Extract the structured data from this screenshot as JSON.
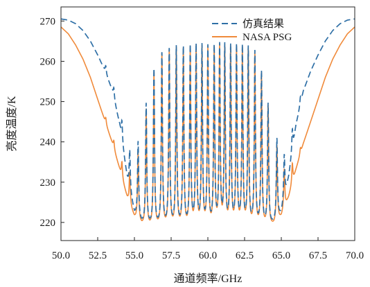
{
  "chart_data": {
    "type": "line",
    "xlabel": "通道频率/GHz",
    "ylabel": "亮度温度/K",
    "xlim": [
      50.0,
      70.0
    ],
    "ylim": [
      215.5,
      273.5
    ],
    "x_ticks": [
      50.0,
      52.5,
      55.0,
      57.5,
      60.0,
      62.5,
      65.0,
      67.5,
      70.0
    ],
    "x_tick_labels": [
      "50.0",
      "52.5",
      "55.0",
      "57.5",
      "60.0",
      "62.5",
      "65.0",
      "67.5",
      "70.0"
    ],
    "y_ticks": [
      220,
      230,
      240,
      250,
      260,
      270
    ],
    "y_tick_labels": [
      "220",
      "230",
      "240",
      "250",
      "260",
      "270"
    ],
    "grid": false,
    "legend_position": "top-right",
    "series": [
      {
        "name": "仿真结果",
        "color": "#2e6fa6",
        "style": "dashed",
        "envelope": [
          [
            50.0,
            270.5
          ],
          [
            50.5,
            270.2
          ],
          [
            51.0,
            269.3
          ],
          [
            51.5,
            267.6
          ],
          [
            52.0,
            265.0
          ],
          [
            52.5,
            261.5
          ],
          [
            53.0,
            257.5
          ],
          [
            53.5,
            252.5
          ],
          [
            54.0,
            244.0
          ],
          [
            54.5,
            231.0
          ],
          [
            55.0,
            222.0
          ],
          [
            55.5,
            219.5
          ],
          [
            56.0,
            218.8
          ],
          [
            58.0,
            218.3
          ],
          [
            60.0,
            218.1
          ],
          [
            62.0,
            218.3
          ],
          [
            64.0,
            218.8
          ],
          [
            64.5,
            219.5
          ],
          [
            65.0,
            222.0
          ],
          [
            65.5,
            231.0
          ],
          [
            66.0,
            244.0
          ],
          [
            66.5,
            252.5
          ],
          [
            67.0,
            257.5
          ],
          [
            67.5,
            261.5
          ],
          [
            68.0,
            265.0
          ],
          [
            68.5,
            267.6
          ],
          [
            69.0,
            269.3
          ],
          [
            69.5,
            270.2
          ],
          [
            70.0,
            270.5
          ]
        ],
        "lines": [
          [
            53.05,
            1.8
          ],
          [
            53.6,
            2.5
          ],
          [
            54.15,
            5.0
          ],
          [
            54.68,
            10.0
          ],
          [
            55.25,
            19.0
          ],
          [
            55.8,
            30.0
          ],
          [
            56.33,
            39.0
          ],
          [
            56.87,
            43.0
          ],
          [
            57.37,
            44.0
          ],
          [
            57.85,
            44.5
          ],
          [
            58.33,
            44.6
          ],
          [
            58.8,
            44.6
          ],
          [
            59.2,
            44.7
          ],
          [
            59.6,
            44.7
          ],
          [
            60.0,
            44.5
          ],
          [
            60.43,
            44.6
          ],
          [
            60.8,
            44.6
          ],
          [
            61.15,
            44.6
          ],
          [
            61.55,
            44.5
          ],
          [
            61.95,
            44.5
          ],
          [
            62.35,
            44.3
          ],
          [
            62.75,
            44.0
          ],
          [
            63.2,
            43.0
          ],
          [
            63.65,
            38.0
          ],
          [
            64.1,
            30.0
          ],
          [
            64.7,
            20.0
          ],
          [
            65.2,
            11.0
          ],
          [
            65.75,
            5.5
          ],
          [
            66.3,
            2.0
          ]
        ],
        "line_width_ghz": 0.045
      },
      {
        "name": "NASA PSG",
        "color": "#f08a3a",
        "style": "solid",
        "envelope": [
          [
            50.0,
            268.5
          ],
          [
            50.5,
            266.8
          ],
          [
            51.0,
            264.0
          ],
          [
            51.5,
            260.5
          ],
          [
            52.0,
            256.0
          ],
          [
            52.5,
            250.5
          ],
          [
            53.0,
            245.0
          ],
          [
            53.5,
            239.5
          ],
          [
            54.0,
            233.0
          ],
          [
            54.5,
            226.0
          ],
          [
            55.0,
            221.0
          ],
          [
            55.5,
            219.0
          ],
          [
            56.0,
            218.4
          ],
          [
            58.0,
            217.9
          ],
          [
            60.0,
            217.7
          ],
          [
            62.0,
            217.9
          ],
          [
            64.0,
            218.4
          ],
          [
            64.5,
            219.0
          ],
          [
            65.0,
            221.0
          ],
          [
            65.5,
            226.0
          ],
          [
            66.0,
            233.0
          ],
          [
            66.5,
            239.5
          ],
          [
            67.0,
            245.0
          ],
          [
            67.5,
            250.5
          ],
          [
            68.0,
            256.0
          ],
          [
            68.5,
            260.5
          ],
          [
            69.0,
            264.0
          ],
          [
            69.5,
            266.8
          ],
          [
            70.0,
            268.5
          ]
        ],
        "lines": [
          [
            53.05,
            1.5
          ],
          [
            53.6,
            2.0
          ],
          [
            54.15,
            4.0
          ],
          [
            54.68,
            8.0
          ],
          [
            55.25,
            17.0
          ],
          [
            55.8,
            29.0
          ],
          [
            56.33,
            38.5
          ],
          [
            56.87,
            43.0
          ],
          [
            57.37,
            44.0
          ],
          [
            57.85,
            44.5
          ],
          [
            58.33,
            44.6
          ],
          [
            58.8,
            44.6
          ],
          [
            59.2,
            44.7
          ],
          [
            59.6,
            44.7
          ],
          [
            60.0,
            44.5
          ],
          [
            60.43,
            44.6
          ],
          [
            60.8,
            44.6
          ],
          [
            61.15,
            44.6
          ],
          [
            61.55,
            44.5
          ],
          [
            61.95,
            44.5
          ],
          [
            62.35,
            44.3
          ],
          [
            62.75,
            44.0
          ],
          [
            63.2,
            43.0
          ],
          [
            63.65,
            38.0
          ],
          [
            64.1,
            30.0
          ],
          [
            64.7,
            19.0
          ],
          [
            65.2,
            10.0
          ],
          [
            65.75,
            5.0
          ],
          [
            66.3,
            1.5
          ]
        ],
        "line_width_ghz": 0.045
      }
    ]
  }
}
